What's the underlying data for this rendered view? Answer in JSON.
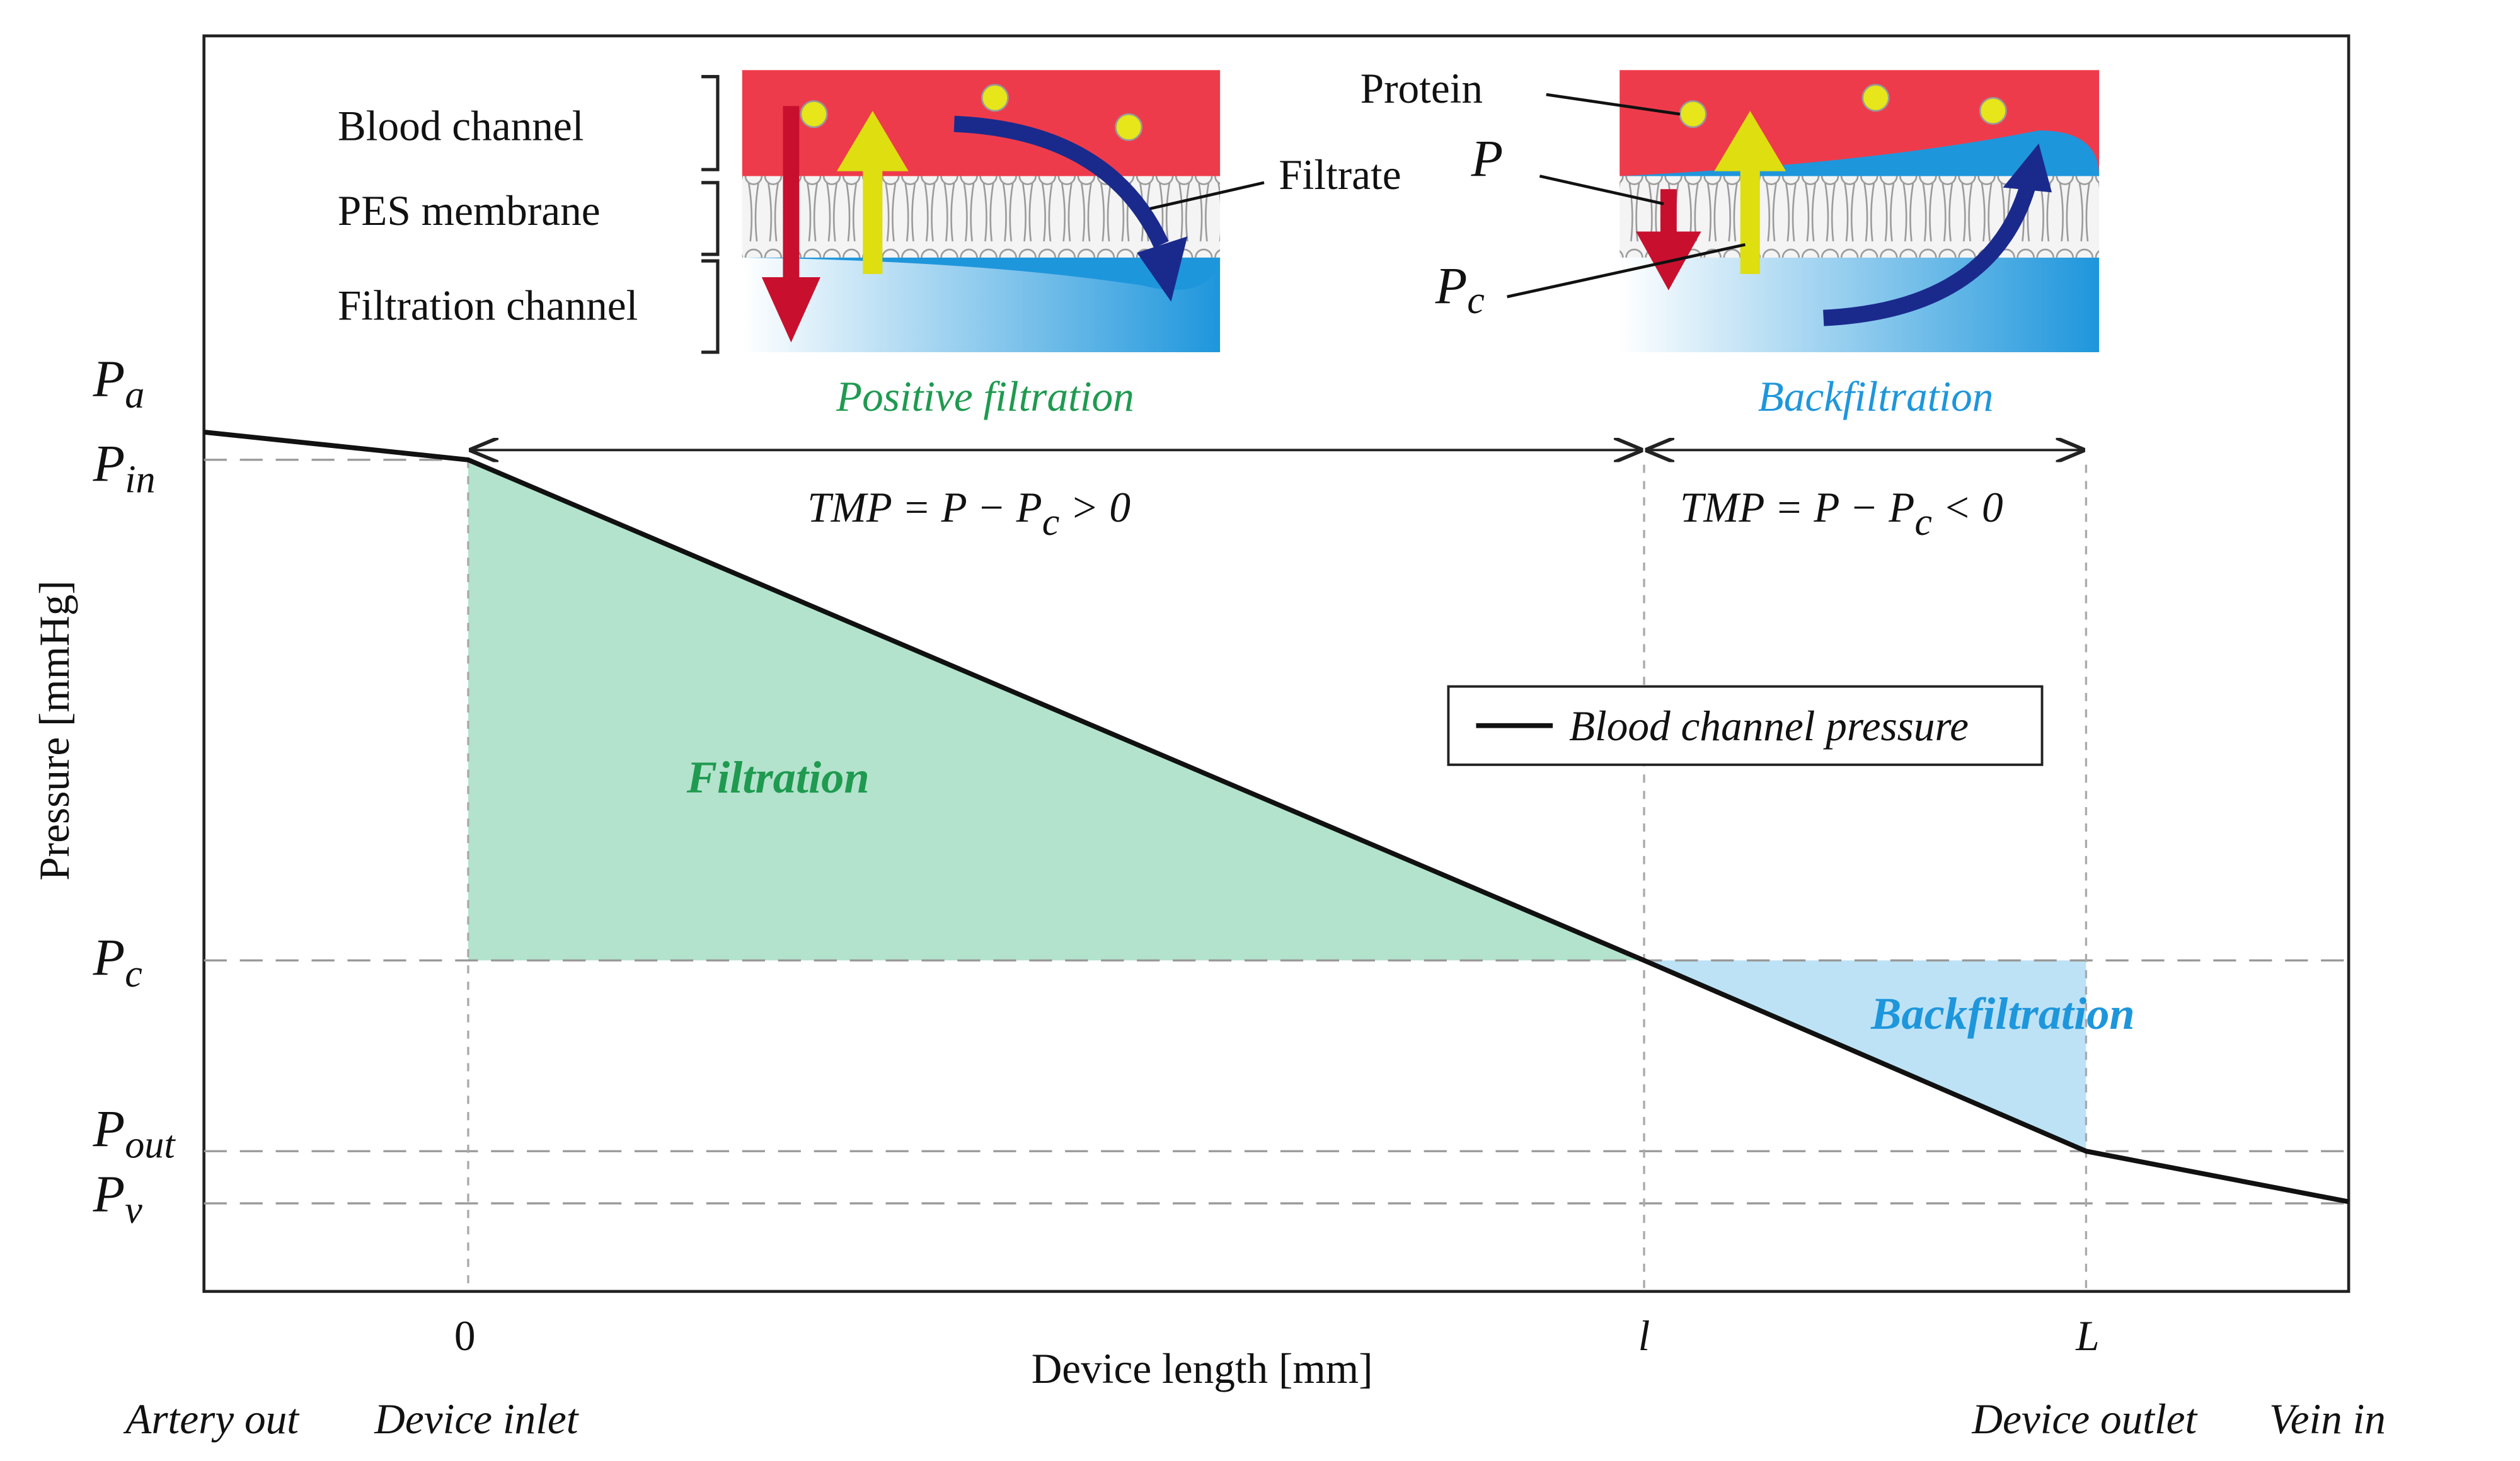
{
  "axes": {
    "y_label": "Pressure [mmHg]",
    "x_label": "Device length [mm]",
    "y_ticks": [
      {
        "main": "P",
        "sub": "a"
      },
      {
        "main": "P",
        "sub": "in"
      },
      {
        "main": "P",
        "sub": "c"
      },
      {
        "main": "P",
        "sub": "out"
      },
      {
        "main": "P",
        "sub": "v"
      }
    ],
    "x_ticks": [
      "0",
      "l",
      "L"
    ],
    "x_notes": [
      "Artery out",
      "Device inlet",
      "Device outlet",
      "Vein in"
    ]
  },
  "regions": {
    "filtration": "Filtration",
    "backfiltration": "Backfiltration"
  },
  "formulas": [
    {
      "pre": "TMP = P − P",
      "sub": "c",
      "post": " > 0"
    },
    {
      "pre": "TMP = P − P",
      "sub": "c",
      "post": " < 0"
    }
  ],
  "legend": "Blood channel pressure",
  "inset_left": {
    "labels": [
      "Blood channel",
      "PES membrane",
      "Filtration channel"
    ],
    "filtrate": "Filtrate",
    "caption": "Positive filtration"
  },
  "inset_right": {
    "protein": "Protein",
    "p": "P",
    "pc": {
      "main": "P",
      "sub": "c"
    },
    "caption": "Backfiltration"
  }
}
